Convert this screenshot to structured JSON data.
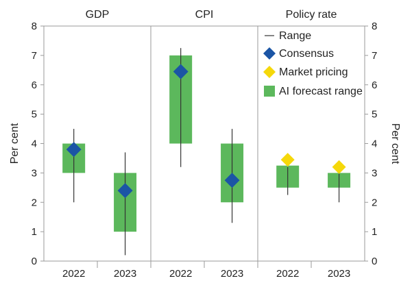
{
  "chart_data": {
    "type": "range",
    "panels": [
      {
        "title": "GDP",
        "categories": [
          "2022",
          "2023"
        ],
        "ranges": [
          [
            2.0,
            4.5
          ],
          [
            0.2,
            3.7
          ]
        ],
        "ai_forecast": [
          [
            3.0,
            4.0
          ],
          [
            1.0,
            3.0
          ]
        ],
        "consensus": [
          3.8,
          2.4
        ],
        "market_pricing": [
          null,
          null
        ]
      },
      {
        "title": "CPI",
        "categories": [
          "2022",
          "2023"
        ],
        "ranges": [
          [
            3.2,
            7.25
          ],
          [
            1.3,
            4.5
          ]
        ],
        "ai_forecast": [
          [
            4.0,
            7.0
          ],
          [
            2.0,
            4.0
          ]
        ],
        "consensus": [
          6.45,
          2.75
        ],
        "market_pricing": [
          null,
          null
        ]
      },
      {
        "title": "Policy rate",
        "categories": [
          "2022",
          "2023"
        ],
        "ranges": [
          [
            2.25,
            3.2
          ],
          [
            2.0,
            3.2
          ]
        ],
        "ai_forecast": [
          [
            2.5,
            3.25
          ],
          [
            2.5,
            3.0
          ]
        ],
        "consensus": [
          null,
          null
        ],
        "market_pricing": [
          3.45,
          3.2
        ]
      }
    ],
    "ylabel": "Per cent",
    "ylim": [
      0,
      8
    ],
    "yticks": [
      0,
      1,
      2,
      3,
      4,
      5,
      6,
      7,
      8
    ],
    "legend": {
      "placement": "inside-right-panel-top",
      "entries": [
        {
          "key": "range",
          "label": "Range"
        },
        {
          "key": "consensus",
          "label": "Consensus"
        },
        {
          "key": "market",
          "label": "Market pricing"
        },
        {
          "key": "ai",
          "label": "AI forecast range"
        }
      ]
    },
    "colors": {
      "ai_forecast": "#5cb85c",
      "consensus": "#1b55a5",
      "market_pricing": "#f5d80a",
      "range": "#333333",
      "axis": "#9a9a9a"
    }
  }
}
